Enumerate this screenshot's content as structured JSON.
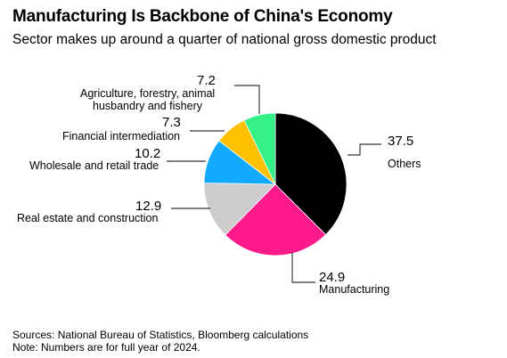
{
  "title": "Manufacturing Is Backbone of China's Economy",
  "subtitle": "Sector makes up around a quarter of national gross domestic product",
  "source": "Sources: National Bureau of Statistics, Bloomberg calculations",
  "note": "Note: Numbers are for full year of 2024.",
  "chart_data": {
    "type": "pie",
    "title": "Manufacturing Is Backbone of China's Economy",
    "subtitle": "Sector makes up around a quarter of national gross domestic product",
    "slices": [
      {
        "label": "Others",
        "value": 37.5,
        "value_label": "37.5",
        "color": "#000000"
      },
      {
        "label": "Manufacturing",
        "value": 24.9,
        "value_label": "24.9",
        "color": "#ff1a8c"
      },
      {
        "label": "Real estate and construction",
        "value": 12.9,
        "value_label": "12.9",
        "color": "#cccccc"
      },
      {
        "label": "Wholesale and retail trade",
        "value": 10.2,
        "value_label": "10.2",
        "color": "#12a9ff"
      },
      {
        "label": "Financial intermediation",
        "value": 7.3,
        "value_label": "7.3",
        "color": "#ffc000"
      },
      {
        "label": [
          "Agriculture, forestry, animal",
          "husbandry and fishery"
        ],
        "value": 7.2,
        "value_label": "7.2",
        "color": "#33f087"
      }
    ]
  }
}
